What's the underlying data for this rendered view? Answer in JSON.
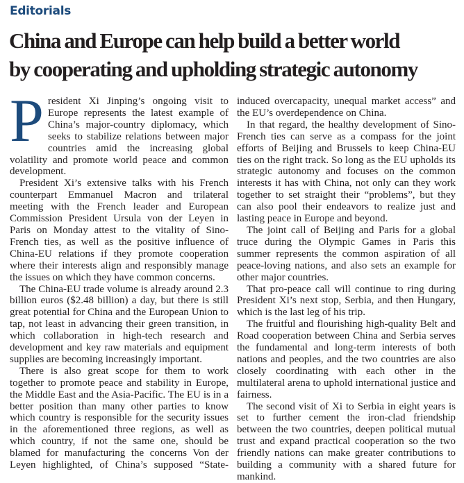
{
  "section": "Editorials",
  "headline": {
    "line1": "China and Europe can help build a better world",
    "line2": "by cooperating and upholding strategic autonomy"
  },
  "article": {
    "drop_cap": "P",
    "first_paragraph_rest": "resident Xi Jinping’s ongoing visit to Europe represents the latest example of China’s major-country diplomacy, which seeks to stabilize relations between major countries amid the increasing global volatility and promote world peace and common development.",
    "paragraphs": [
      "President Xi’s extensive talks with his French counterpart Emmanuel Macron and trilateral meeting with the French leader and European Commission President Ursula von der Leyen in Paris on Monday attest to the vitality of Sino-French ties, as well as the positive influence of China-EU relations if they promote cooperation where their interests align and responsibly manage the issues on which they have common concerns.",
      "The China-EU trade volume is already around 2.3 billion euros ($2.48 billion) a day, but there is still great potential for China and the European Union to tap, not least in advancing their green transition, in which collaboration in high-tech research and development and key raw materials and equipment supplies are becoming increasingly important.",
      "There is also great scope for them to work together to promote peace and stability in Europe, the Middle East and the Asia-Pacific. The EU is in a better position than many other parties to know which country is responsible for the security issues in the aforementioned three regions, as well as which country, if not the same one, should be blamed for manufacturing the concerns Von der Leyen highlighted, of China’s supposed “State-induced overcapacity, unequal market access” and the EU’s overdependence on China.",
      "In that regard, the healthy development of Sino-French ties can serve as a compass for the joint efforts of Beijing and Brussels to keep China-EU ties on the right track. So long as the EU upholds its strategic autonomy and focuses on the common interests it has with China, not only can they work together to set straight their “problems”, but they can also pool their endeavors to realize just and lasting peace in Europe and beyond.",
      "The joint call of Beijing and Paris for a global truce during the Olympic Games in Paris this summer represents the common aspiration of all peace-loving nations, and also sets an example for other major countries.",
      "That pro-peace call will continue to ring during President Xi’s next stop, Serbia, and then Hungary, which is the last leg of his trip.",
      "The fruitful and flourishing high-quality Belt and Road cooperation between China and Serbia serves the fundamental and long-term interests of both nations and peoples, and the two countries are also closely coordinating with each other in the multilateral arena to uphold international justice and fairness.",
      "The second visit of Xi to Serbia in eight years is set to further cement the iron-clad friendship between the two countries, deepen political mutual trust and expand practical cooperation so the two friendly nations can make greater contributions to building a community with a shared future for mankind."
    ]
  },
  "colors": {
    "accent": "#1d4b7c",
    "text": "#231f20"
  }
}
